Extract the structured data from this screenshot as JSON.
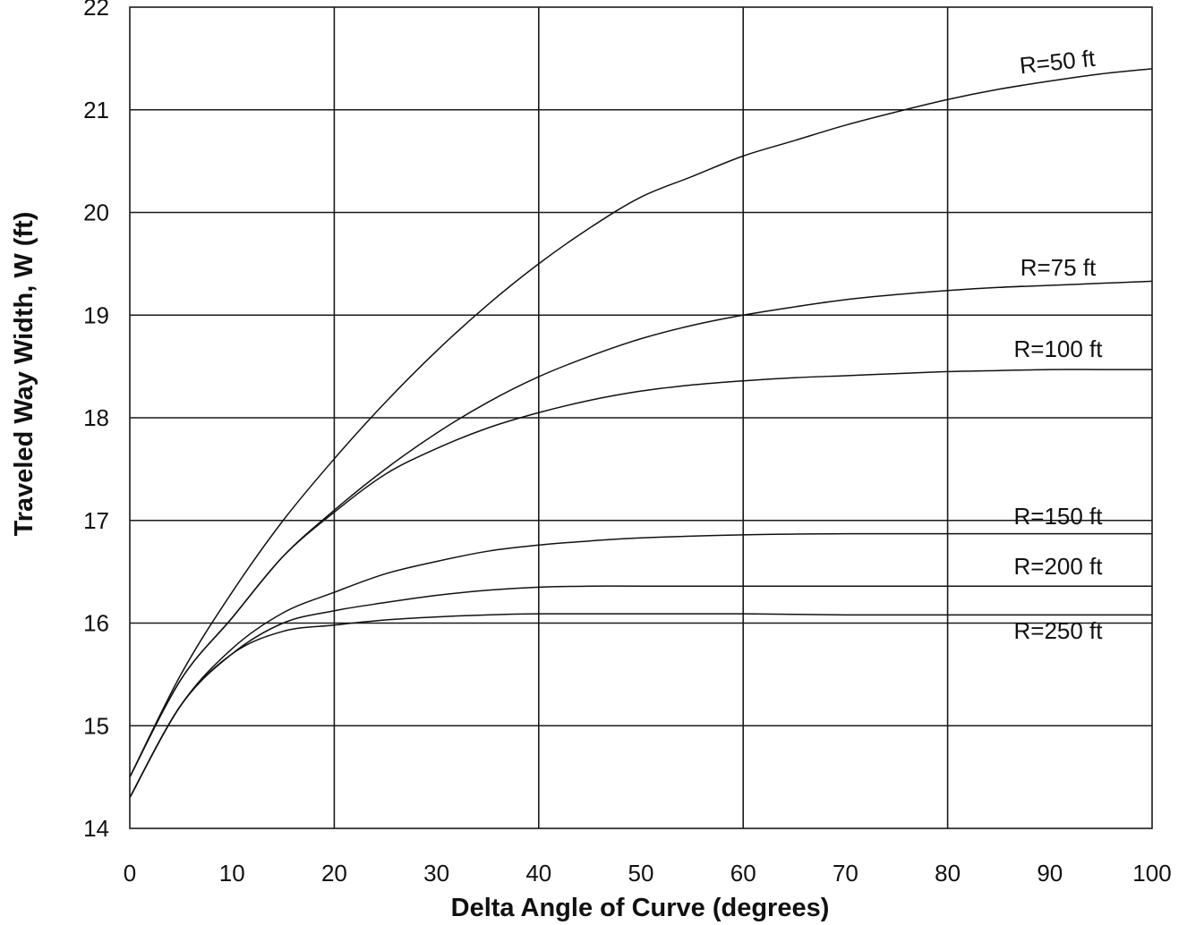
{
  "chart_data": {
    "type": "line",
    "title": "",
    "xlabel": "Delta Angle of Curve (degrees)",
    "ylabel": "Traveled Way Width, W (ft)",
    "xlim": [
      0,
      100
    ],
    "ylim": [
      14,
      22
    ],
    "x_ticks": [
      "0",
      "10",
      "20",
      "30",
      "40",
      "50",
      "60",
      "70",
      "80",
      "90",
      "100"
    ],
    "y_ticks": [
      "14",
      "15",
      "16",
      "17",
      "18",
      "19",
      "20",
      "21",
      "22"
    ],
    "grid": true,
    "line_color": "#111111",
    "grid_color": "#1a1a1a",
    "series": [
      {
        "name": "R=50 ft",
        "x": [
          0,
          5,
          10,
          15,
          20,
          25,
          30,
          35,
          40,
          45,
          50,
          55,
          60,
          65,
          70,
          75,
          80,
          85,
          90,
          95,
          100
        ],
        "y": [
          14.5,
          15.5,
          16.3,
          17.0,
          17.6,
          18.15,
          18.65,
          19.1,
          19.5,
          19.85,
          20.15,
          20.35,
          20.55,
          20.7,
          20.85,
          20.98,
          21.1,
          21.2,
          21.28,
          21.35,
          21.4
        ]
      },
      {
        "name": "R=75 ft",
        "x": [
          0,
          5,
          10,
          15,
          20,
          25,
          30,
          35,
          40,
          45,
          50,
          55,
          60,
          65,
          70,
          75,
          80,
          85,
          90,
          95,
          100
        ],
        "y": [
          14.5,
          15.45,
          16.05,
          16.65,
          17.1,
          17.5,
          17.85,
          18.15,
          18.4,
          18.6,
          18.77,
          18.9,
          19.0,
          19.08,
          19.15,
          19.2,
          19.24,
          19.27,
          19.29,
          19.31,
          19.33
        ]
      },
      {
        "name": "R=100 ft",
        "x": [
          0,
          5,
          10,
          15,
          20,
          25,
          30,
          35,
          40,
          45,
          50,
          55,
          60,
          65,
          70,
          75,
          80,
          85,
          90,
          95,
          100
        ],
        "y": [
          14.5,
          15.45,
          16.05,
          16.65,
          17.08,
          17.45,
          17.7,
          17.9,
          18.05,
          18.17,
          18.26,
          18.32,
          18.36,
          18.39,
          18.41,
          18.43,
          18.45,
          18.46,
          18.47,
          18.47,
          18.47
        ]
      },
      {
        "name": "R=150 ft",
        "x": [
          0,
          5,
          10,
          15,
          20,
          25,
          30,
          35,
          40,
          45,
          50,
          60,
          70,
          80,
          90,
          100
        ],
        "y": [
          14.3,
          15.2,
          15.75,
          16.1,
          16.3,
          16.48,
          16.6,
          16.7,
          16.76,
          16.8,
          16.83,
          16.86,
          16.87,
          16.87,
          16.87,
          16.87
        ]
      },
      {
        "name": "R=200 ft",
        "x": [
          0,
          5,
          10,
          15,
          20,
          25,
          30,
          35,
          40,
          45,
          50,
          60,
          70,
          80,
          90,
          100
        ],
        "y": [
          14.3,
          15.2,
          15.7,
          16.0,
          16.12,
          16.2,
          16.27,
          16.32,
          16.35,
          16.36,
          16.36,
          16.36,
          16.36,
          16.36,
          16.36,
          16.36
        ]
      },
      {
        "name": "R=250 ft",
        "x": [
          0,
          5,
          10,
          15,
          20,
          25,
          30,
          35,
          40,
          45,
          50,
          60,
          70,
          80,
          90,
          100
        ],
        "y": [
          14.3,
          15.2,
          15.7,
          15.92,
          15.98,
          16.03,
          16.06,
          16.08,
          16.09,
          16.09,
          16.09,
          16.09,
          16.08,
          16.08,
          16.08,
          16.08
        ]
      }
    ]
  }
}
